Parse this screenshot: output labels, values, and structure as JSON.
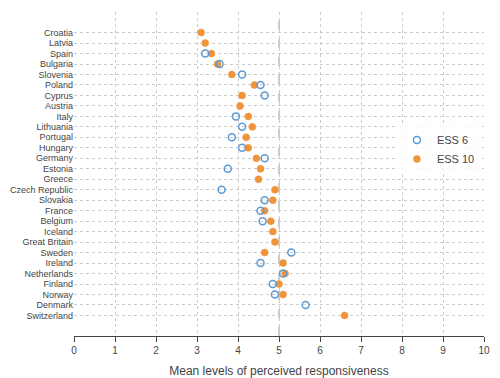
{
  "chart_data": {
    "type": "scatter",
    "orientation": "horizontal",
    "xlabel": "Mean levels of perceived responsiveness",
    "categories": [
      "Croatia",
      "Latvia",
      "Spain",
      "Bulgaria",
      "Slovenia",
      "Poland",
      "Cyprus",
      "Austria",
      "Italy",
      "Lithuania",
      "Portugal",
      "Hungary",
      "Germany",
      "Estonia",
      "Greece",
      "Czech Republic",
      "Slovakia",
      "France",
      "Belgium",
      "Iceland",
      "Great Britain",
      "Sweden",
      "Ireland",
      "Netherlands",
      "Finland",
      "Norway",
      "Denmark",
      "Switzerland"
    ],
    "series": [
      {
        "name": "ESS 6",
        "color": "#5b9bd5",
        "marker": "open_circle",
        "values": [
          null,
          null,
          3.2,
          3.55,
          4.1,
          4.55,
          4.65,
          null,
          3.95,
          4.1,
          3.85,
          4.1,
          4.65,
          3.75,
          null,
          3.6,
          4.65,
          4.55,
          4.6,
          null,
          null,
          5.3,
          4.55,
          5.1,
          4.85,
          4.9,
          5.65,
          null
        ]
      },
      {
        "name": "ESS 10",
        "color": "#f0943a",
        "marker": "circle",
        "values": [
          3.1,
          3.2,
          3.35,
          3.5,
          3.85,
          4.4,
          4.1,
          4.05,
          4.25,
          4.35,
          4.2,
          4.25,
          4.45,
          4.55,
          4.5,
          4.9,
          4.85,
          4.65,
          4.8,
          4.85,
          4.9,
          4.65,
          5.1,
          5.15,
          5.0,
          5.1,
          null,
          6.6
        ]
      }
    ],
    "vline": 5.0,
    "xlim": [
      0,
      10
    ],
    "xticks": [
      0,
      1,
      2,
      3,
      4,
      5,
      6,
      7,
      8,
      9,
      10
    ],
    "grid": true,
    "legend": "upper right"
  }
}
